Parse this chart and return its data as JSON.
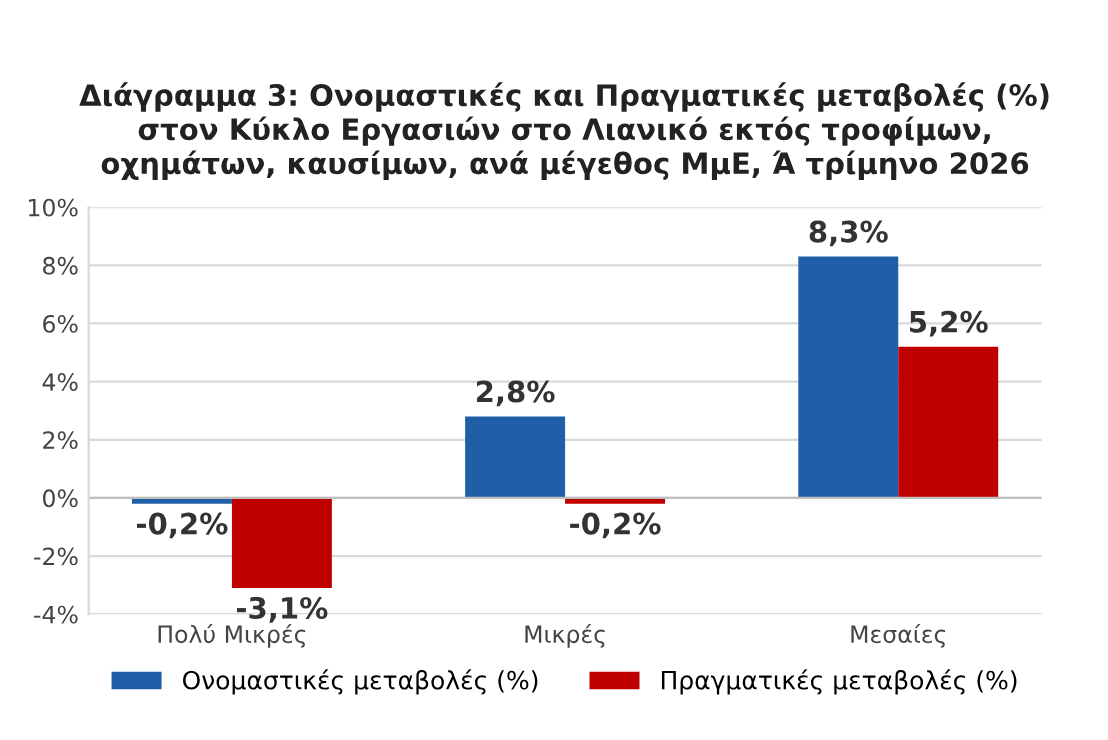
{
  "chart_data": {
    "type": "bar",
    "title": "Διάγραμμα 3: Ονομαστικές και Πραγματικές μεταβολές (%)\nστον Κύκλο Εργασιών στο Λιανικό εκτός τροφίμων,\nοχημάτων, καυσίμων, ανά μέγεθος ΜμΕ, Ά τρίμηνο 2026",
    "categories": [
      "Πολύ Μικρές",
      "Μικρές",
      "Μεσαίες"
    ],
    "series": [
      {
        "name": "Ονομαστικές μεταβολές (%)",
        "color": "#1f5fa8",
        "values": [
          -0.2,
          2.8,
          8.3
        ],
        "value_labels": [
          "-0,2%",
          "2,8%",
          "8,3%"
        ]
      },
      {
        "name": "Πραγματικές μεταβολές (%)",
        "color": "#c00000",
        "values": [
          -3.1,
          -0.2,
          5.2
        ],
        "value_labels": [
          "-3,1%",
          "-0,2%",
          "5,2%"
        ]
      }
    ],
    "ylim": [
      -4,
      10
    ],
    "yticks": [
      {
        "value": -4,
        "label": "-4%"
      },
      {
        "value": -2,
        "label": "-2%"
      },
      {
        "value": 0,
        "label": "0%"
      },
      {
        "value": 2,
        "label": "2%"
      },
      {
        "value": 4,
        "label": "4%"
      },
      {
        "value": 6,
        "label": "6%"
      },
      {
        "value": 8,
        "label": "8%"
      },
      {
        "value": 10,
        "label": "10%"
      }
    ],
    "grid": "y",
    "legend": "bottom"
  }
}
